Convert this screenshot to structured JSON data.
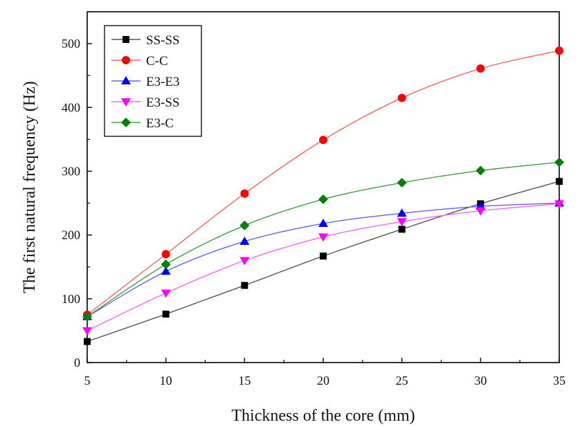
{
  "chart_data": {
    "type": "line",
    "title": "",
    "xlabel": "Thickness of the core (mm)",
    "ylabel": "The first natural frequency (Hz)",
    "xlim": [
      5,
      35
    ],
    "ylim": [
      0,
      550
    ],
    "xticks": [
      5,
      10,
      15,
      20,
      25,
      30,
      35
    ],
    "yticks": [
      0,
      100,
      200,
      300,
      400,
      500
    ],
    "grid": false,
    "legend_position": "top-left",
    "x": [
      5,
      10,
      15,
      20,
      25,
      30,
      35
    ],
    "series": [
      {
        "name": "SS-SS",
        "color": "#000000",
        "line_color": "#555555",
        "marker": "square",
        "values": [
          33,
          76,
          121,
          167,
          209,
          249,
          284
        ]
      },
      {
        "name": "C-C",
        "color": "#ff0000",
        "line_color": "#ff6060",
        "marker": "circle",
        "values": [
          75,
          170,
          265,
          349,
          415,
          461,
          489
        ]
      },
      {
        "name": "E3-E3",
        "color": "#0000ff",
        "line_color": "#6060ff",
        "marker": "triangle-up",
        "values": [
          72,
          143,
          190,
          218,
          234,
          245,
          250
        ]
      },
      {
        "name": "E3-SS",
        "color": "#ff00ff",
        "line_color": "#ff60ff",
        "marker": "triangle-down",
        "values": [
          50,
          109,
          160,
          197,
          221,
          238,
          249
        ]
      },
      {
        "name": "E3-C",
        "color": "#008000",
        "line_color": "#40a040",
        "marker": "diamond",
        "values": [
          72,
          154,
          215,
          256,
          282,
          301,
          314
        ]
      }
    ]
  }
}
